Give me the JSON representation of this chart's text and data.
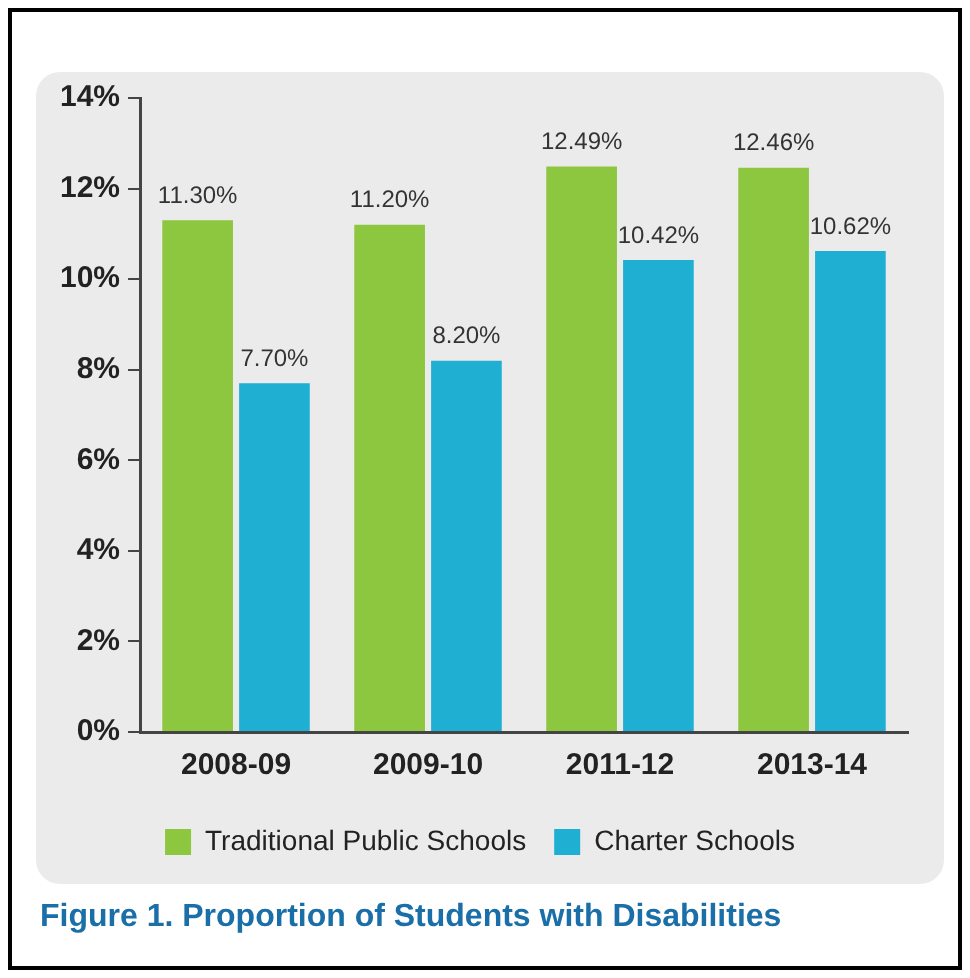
{
  "chart_data": {
    "type": "bar",
    "title": "Figure 1. Proportion of Students with Disabilities",
    "categories": [
      "2008-09",
      "2009-10",
      "2011-12",
      "2013-14"
    ],
    "series": [
      {
        "name": "Traditional Public Schools",
        "color": "#8dc63f",
        "values": [
          11.3,
          11.2,
          12.49,
          12.46
        ],
        "value_labels": [
          "11.30%",
          "11.20%",
          "12.49%",
          "12.46%"
        ]
      },
      {
        "name": "Charter Schools",
        "color": "#1eafd2",
        "values": [
          7.7,
          8.2,
          10.42,
          10.62
        ],
        "value_labels": [
          "7.70%",
          "8.20%",
          "10.42%",
          "10.62%"
        ]
      }
    ],
    "ylim": [
      0,
      14
    ],
    "yticks": [
      {
        "value": 0,
        "label": "0%"
      },
      {
        "value": 2,
        "label": "2%"
      },
      {
        "value": 4,
        "label": "4%"
      },
      {
        "value": 6,
        "label": "6%"
      },
      {
        "value": 8,
        "label": "8%"
      },
      {
        "value": 10,
        "label": "10%"
      },
      {
        "value": 12,
        "label": "12%"
      },
      {
        "value": 14,
        "label": "14%"
      }
    ],
    "grid": false,
    "legend": "bottom"
  }
}
